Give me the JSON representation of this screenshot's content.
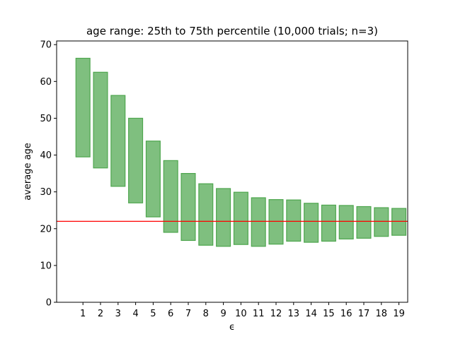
{
  "chart_data": {
    "type": "bar",
    "subtype": "floating-range-bar",
    "title": "age range: 25th to 75th percentile (10,000 trials; n=3)",
    "xlabel": "ϵ",
    "ylabel": "average age",
    "categories": [
      "1",
      "2",
      "3",
      "4",
      "5",
      "6",
      "7",
      "8",
      "9",
      "10",
      "11",
      "12",
      "13",
      "14",
      "15",
      "16",
      "17",
      "18",
      "19"
    ],
    "series": [
      {
        "low": [
          39.5,
          36.5,
          31.5,
          27.0,
          23.2,
          19.0,
          16.8,
          15.5,
          15.2,
          15.7,
          15.2,
          15.8,
          16.6,
          16.3,
          16.6,
          17.2,
          17.4,
          17.9,
          18.2
        ],
        "high": [
          66.3,
          62.5,
          56.2,
          50.0,
          43.8,
          38.5,
          35.0,
          32.2,
          30.9,
          29.9,
          28.4,
          27.9,
          27.8,
          26.9,
          26.4,
          26.3,
          26.0,
          25.7,
          25.5
        ]
      }
    ],
    "reference_line": {
      "y": 22.0,
      "color": "#ff0000"
    },
    "ylim": [
      0,
      71
    ],
    "yticks": [
      0,
      10,
      20,
      30,
      40,
      50,
      60,
      70
    ],
    "xlim": [
      -0.5,
      19.5
    ],
    "grid": false,
    "colors": {
      "bar_fill": "#7fbf7f",
      "bar_edge": "#4ea64e",
      "axis": "#000000"
    }
  }
}
